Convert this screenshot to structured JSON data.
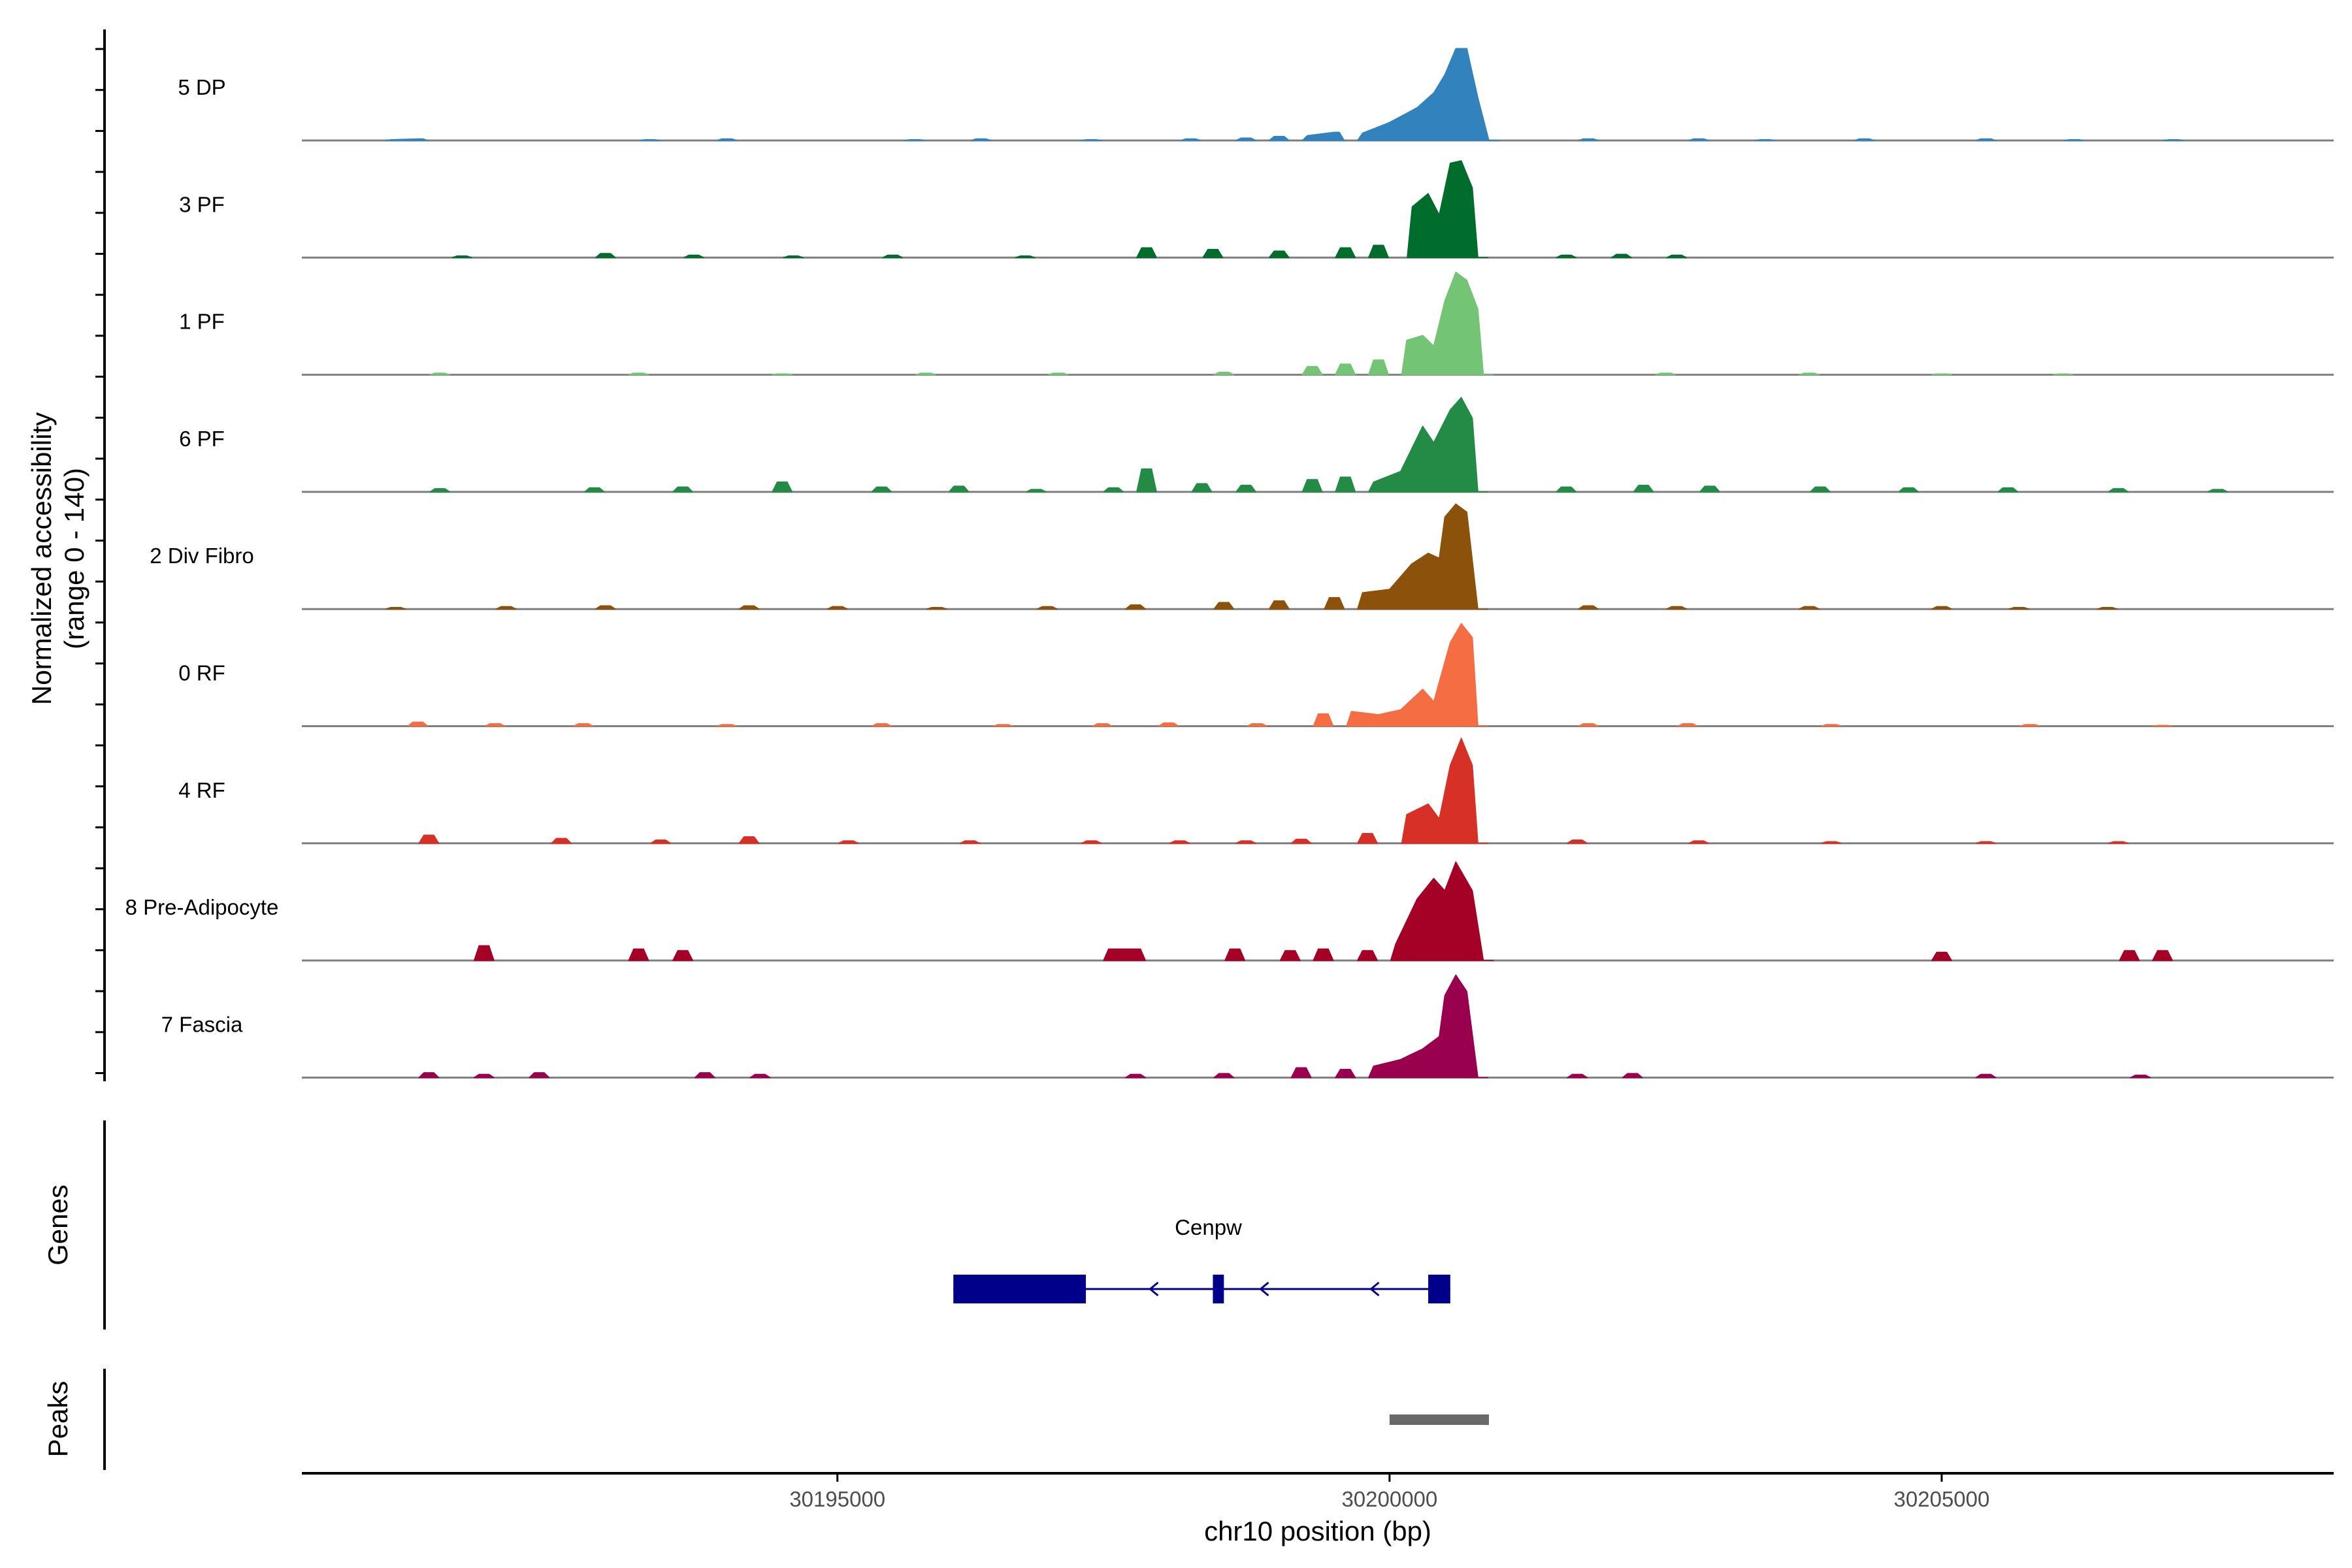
{
  "chart_data": {
    "type": "area",
    "title": "",
    "chromosome": "chr10",
    "xlabel": "chr10 position (bp)",
    "xlim": [
      30190150,
      30208550
    ],
    "xticks": [
      30195000,
      30200000,
      30205000
    ],
    "xtick_labels": [
      "30195000",
      "30200000",
      "30205000"
    ],
    "ylabel": "Normalized accessibility",
    "ylabel_range": "(range 0 - 140)",
    "ylim": [
      0,
      140
    ],
    "track_labels": {
      "genes": "Genes",
      "peaks": "Peaks"
    },
    "series": [
      {
        "name": "5 DP",
        "color": "#3182BD",
        "values": [
          [
            30191000,
            1
          ],
          [
            30191200,
            2
          ],
          [
            30193300,
            1
          ],
          [
            30194000,
            2
          ],
          [
            30195700,
            1
          ],
          [
            30196300,
            2
          ],
          [
            30197300,
            1
          ],
          [
            30198200,
            2
          ],
          [
            30198700,
            3
          ],
          [
            30199000,
            5
          ],
          [
            30199300,
            6
          ],
          [
            30199500,
            10
          ],
          [
            30199800,
            9
          ],
          [
            30200000,
            22
          ],
          [
            30200250,
            40
          ],
          [
            30200400,
            58
          ],
          [
            30200500,
            80
          ],
          [
            30200600,
            112
          ],
          [
            30200700,
            112
          ],
          [
            30200800,
            52
          ],
          [
            30200900,
            0
          ],
          [
            30201800,
            2
          ],
          [
            30202800,
            2
          ],
          [
            30203400,
            1
          ],
          [
            30204300,
            2
          ],
          [
            30205400,
            2
          ],
          [
            30206200,
            1
          ],
          [
            30207100,
            1
          ]
        ]
      },
      {
        "name": "3 PF",
        "color": "#006D2C",
        "values": [
          [
            30191600,
            2
          ],
          [
            30192900,
            5
          ],
          [
            30193700,
            3
          ],
          [
            30194600,
            2
          ],
          [
            30195500,
            3
          ],
          [
            30196700,
            2
          ],
          [
            30197800,
            12
          ],
          [
            30198400,
            10
          ],
          [
            30199000,
            8
          ],
          [
            30199600,
            12
          ],
          [
            30199900,
            15
          ],
          [
            30200250,
            62
          ],
          [
            30200350,
            78
          ],
          [
            30200450,
            52
          ],
          [
            30200550,
            115
          ],
          [
            30200650,
            118
          ],
          [
            30200750,
            85
          ],
          [
            30200800,
            0
          ],
          [
            30201600,
            3
          ],
          [
            30202100,
            4
          ],
          [
            30202600,
            3
          ]
        ]
      },
      {
        "name": "1 PF",
        "color": "#74C476",
        "values": [
          [
            30191400,
            2
          ],
          [
            30193200,
            2
          ],
          [
            30194500,
            1
          ],
          [
            30195800,
            2
          ],
          [
            30197000,
            2
          ],
          [
            30198500,
            3
          ],
          [
            30199300,
            10
          ],
          [
            30199600,
            13
          ],
          [
            30199900,
            18
          ],
          [
            30200200,
            42
          ],
          [
            30200300,
            48
          ],
          [
            30200400,
            35
          ],
          [
            30200500,
            90
          ],
          [
            30200600,
            125
          ],
          [
            30200700,
            115
          ],
          [
            30200800,
            80
          ],
          [
            30200850,
            0
          ],
          [
            30202500,
            2
          ],
          [
            30203800,
            2
          ],
          [
            30205000,
            1
          ],
          [
            30206100,
            1
          ]
        ]
      },
      {
        "name": "6 PF",
        "color": "#238B45",
        "values": [
          [
            30191400,
            4
          ],
          [
            30192800,
            5
          ],
          [
            30193600,
            6
          ],
          [
            30194500,
            12
          ],
          [
            30195400,
            6
          ],
          [
            30196100,
            7
          ],
          [
            30196800,
            3
          ],
          [
            30197500,
            5
          ],
          [
            30197800,
            28
          ],
          [
            30198300,
            10
          ],
          [
            30198700,
            8
          ],
          [
            30199300,
            15
          ],
          [
            30199600,
            18
          ],
          [
            30199900,
            12
          ],
          [
            30200100,
            25
          ],
          [
            30200300,
            80
          ],
          [
            30200400,
            60
          ],
          [
            30200550,
            100
          ],
          [
            30200650,
            115
          ],
          [
            30200750,
            90
          ],
          [
            30200800,
            0
          ],
          [
            30201600,
            6
          ],
          [
            30202300,
            8
          ],
          [
            30202900,
            7
          ],
          [
            30203900,
            6
          ],
          [
            30204700,
            5
          ],
          [
            30205600,
            5
          ],
          [
            30206600,
            4
          ],
          [
            30207500,
            3
          ]
        ]
      },
      {
        "name": "2 Div Fibro",
        "color": "#8C510A",
        "values": [
          [
            30191000,
            2
          ],
          [
            30192000,
            3
          ],
          [
            30192900,
            4
          ],
          [
            30194200,
            4
          ],
          [
            30195000,
            3
          ],
          [
            30195900,
            2
          ],
          [
            30196900,
            3
          ],
          [
            30197700,
            5
          ],
          [
            30198500,
            8
          ],
          [
            30199000,
            10
          ],
          [
            30199500,
            14
          ],
          [
            30199800,
            20
          ],
          [
            30200000,
            24
          ],
          [
            30200200,
            55
          ],
          [
            30200350,
            68
          ],
          [
            30200450,
            62
          ],
          [
            30200500,
            112
          ],
          [
            30200600,
            128
          ],
          [
            30200700,
            118
          ],
          [
            30200800,
            0
          ],
          [
            30201800,
            4
          ],
          [
            30202600,
            3
          ],
          [
            30203800,
            3
          ],
          [
            30205000,
            3
          ],
          [
            30205700,
            2
          ],
          [
            30206500,
            2
          ]
        ]
      },
      {
        "name": "0 RF",
        "color": "#F46D43",
        "values": [
          [
            30191200,
            5
          ],
          [
            30191900,
            3
          ],
          [
            30192700,
            3
          ],
          [
            30194000,
            2
          ],
          [
            30195400,
            3
          ],
          [
            30196500,
            2
          ],
          [
            30197400,
            3
          ],
          [
            30198000,
            4
          ],
          [
            30198800,
            3
          ],
          [
            30199400,
            15
          ],
          [
            30199700,
            18
          ],
          [
            30199900,
            14
          ],
          [
            30200100,
            20
          ],
          [
            30200300,
            45
          ],
          [
            30200400,
            30
          ],
          [
            30200550,
            102
          ],
          [
            30200650,
            125
          ],
          [
            30200750,
            108
          ],
          [
            30200800,
            0
          ],
          [
            30201800,
            3
          ],
          [
            30202700,
            3
          ],
          [
            30204000,
            2
          ],
          [
            30205800,
            2
          ],
          [
            30207000,
            1
          ]
        ]
      },
      {
        "name": "4 RF",
        "color": "#D73027",
        "values": [
          [
            30191300,
            10
          ],
          [
            30192500,
            6
          ],
          [
            30193400,
            4
          ],
          [
            30194200,
            8
          ],
          [
            30195100,
            3
          ],
          [
            30196200,
            3
          ],
          [
            30197300,
            3
          ],
          [
            30198100,
            3
          ],
          [
            30198700,
            3
          ],
          [
            30199200,
            5
          ],
          [
            30199800,
            12
          ],
          [
            30200200,
            35
          ],
          [
            30200350,
            48
          ],
          [
            30200450,
            30
          ],
          [
            30200550,
            95
          ],
          [
            30200650,
            128
          ],
          [
            30200750,
            95
          ],
          [
            30200800,
            0
          ],
          [
            30201700,
            4
          ],
          [
            30202800,
            3
          ],
          [
            30204000,
            2
          ],
          [
            30205400,
            2
          ],
          [
            30206600,
            2
          ]
        ]
      },
      {
        "name": "8 Pre-Adipocyte",
        "color": "#A50026",
        "values": [
          [
            30191800,
            18
          ],
          [
            30193200,
            14
          ],
          [
            30193600,
            12
          ],
          [
            30197500,
            14
          ],
          [
            30197700,
            14
          ],
          [
            30198600,
            14
          ],
          [
            30199100,
            12
          ],
          [
            30199400,
            14
          ],
          [
            30199800,
            12
          ],
          [
            30200100,
            20
          ],
          [
            30200250,
            75
          ],
          [
            30200400,
            100
          ],
          [
            30200500,
            85
          ],
          [
            30200600,
            120
          ],
          [
            30200750,
            85
          ],
          [
            30200850,
            0
          ],
          [
            30205000,
            10
          ],
          [
            30206700,
            12
          ],
          [
            30207000,
            12
          ]
        ]
      },
      {
        "name": "7 Fascia",
        "color": "#99004E",
        "values": [
          [
            30191300,
            6
          ],
          [
            30191800,
            4
          ],
          [
            30192300,
            6
          ],
          [
            30193800,
            6
          ],
          [
            30194300,
            4
          ],
          [
            30197700,
            4
          ],
          [
            30198500,
            5
          ],
          [
            30199200,
            12
          ],
          [
            30199600,
            10
          ],
          [
            30199900,
            14
          ],
          [
            30200100,
            22
          ],
          [
            30200300,
            35
          ],
          [
            30200450,
            50
          ],
          [
            30200500,
            100
          ],
          [
            30200600,
            125
          ],
          [
            30200700,
            105
          ],
          [
            30200800,
            0
          ],
          [
            30201700,
            4
          ],
          [
            30202200,
            5
          ],
          [
            30205400,
            4
          ],
          [
            30206800,
            3
          ]
        ]
      }
    ],
    "genes": [
      {
        "name": "Cenpw",
        "strand": "-",
        "start": 30196050,
        "end": 30200550,
        "exons": [
          [
            30196050,
            30197250
          ],
          [
            30198400,
            30198500
          ],
          [
            30200350,
            30200550
          ]
        ],
        "arrows": [
          30197850,
          30198850,
          30199850
        ]
      }
    ],
    "peaks": [
      {
        "start": 30200000,
        "end": 30200900
      }
    ]
  },
  "colors": {
    "gene": "#00008B",
    "peak": "#696969",
    "baseline": "#7f7f7f",
    "axis": "#000000"
  }
}
